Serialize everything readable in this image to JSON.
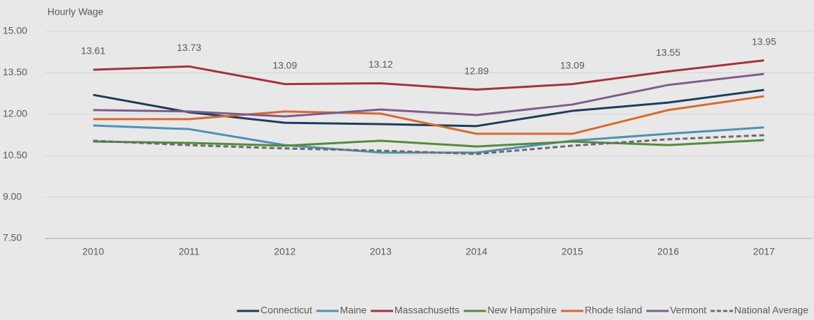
{
  "chart_data": {
    "type": "line",
    "y_axis_label": "Hourly Wage",
    "categories": [
      "2010",
      "2011",
      "2012",
      "2013",
      "2014",
      "2015",
      "2016",
      "2017"
    ],
    "ylim": [
      7.5,
      15
    ],
    "yticks": [
      {
        "value": 7.5,
        "label": "7.50"
      },
      {
        "value": 9,
        "label": "9.00"
      },
      {
        "value": 10.5,
        "label": "10.50"
      },
      {
        "value": 12,
        "label": "12.00"
      },
      {
        "value": 13.5,
        "label": "13.50"
      },
      {
        "value": 15,
        "label": "15.00"
      }
    ],
    "grid": true,
    "legend": "bottom",
    "series": [
      {
        "name": "Connecticut",
        "color": "#1d3c5c",
        "values": [
          12.7,
          12.07,
          11.69,
          11.64,
          11.57,
          12.12,
          12.42,
          12.88
        ]
      },
      {
        "name": "Maine",
        "color": "#4d91b3",
        "values": [
          11.59,
          11.46,
          10.88,
          10.61,
          10.61,
          11.04,
          11.29,
          11.52
        ]
      },
      {
        "name": "Massachusetts",
        "color": "#a3313e",
        "show_labels": true,
        "values": [
          13.61,
          13.73,
          13.09,
          13.12,
          12.89,
          13.09,
          13.55,
          13.95
        ]
      },
      {
        "name": "New Hampshire",
        "color": "#538b3c",
        "values": [
          11.01,
          10.96,
          10.86,
          11.04,
          10.83,
          11.01,
          10.88,
          11.06
        ]
      },
      {
        "name": "Rhode Island",
        "color": "#d8692d",
        "values": [
          11.82,
          11.82,
          12.1,
          12.02,
          11.29,
          11.29,
          12.15,
          12.65
        ]
      },
      {
        "name": "Vermont",
        "color": "#7c5d8b",
        "values": [
          12.15,
          12.1,
          11.92,
          12.17,
          11.97,
          12.35,
          13.06,
          13.46
        ]
      },
      {
        "name": "National Average",
        "color": "#6b6b6b",
        "dashed": true,
        "values": [
          11.04,
          10.88,
          10.76,
          10.68,
          10.56,
          10.86,
          11.09,
          11.24
        ]
      }
    ]
  }
}
